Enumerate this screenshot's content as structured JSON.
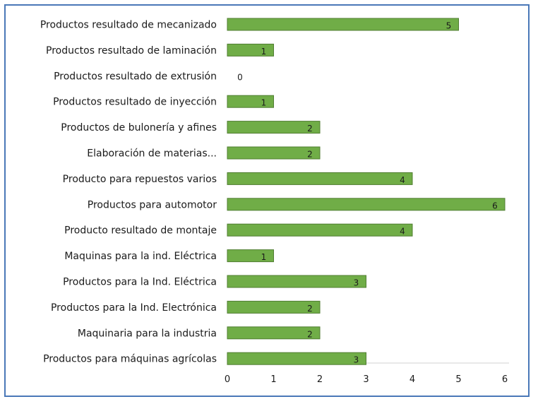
{
  "chart_data": {
    "type": "bar",
    "orientation": "horizontal",
    "title": "",
    "xlabel": "",
    "ylabel": "",
    "xlim": [
      0,
      6
    ],
    "x_ticks": [
      "0",
      "1",
      "2",
      "3",
      "4",
      "5",
      "6"
    ],
    "grid": false,
    "legend": "none",
    "bar_color": "#70ad47",
    "bar_edge_color": "#507e32",
    "categories": [
      "Productos resultado de mecanizado",
      "Productos resultado de laminación",
      "Productos resultado de extrusión",
      "Productos resultado de inyección",
      "Productos de bulonería y afines",
      "Elaboración de materias...",
      "Producto para repuestos varios",
      "Productos para automotor",
      "Producto resultado de montaje",
      "Maquinas para la ind. Eléctrica",
      "Productos para la Ind. Eléctrica",
      "Productos para la Ind. Electrónica",
      "Maquinaria para la industria",
      "Productos para máquinas agrícolas"
    ],
    "values": [
      5,
      1,
      0,
      1,
      2,
      2,
      4,
      6,
      4,
      1,
      3,
      2,
      2,
      3
    ],
    "data_labels": [
      "5",
      "1",
      "0",
      "1",
      "2",
      "2",
      "4",
      "6",
      "4",
      "1",
      "3",
      "2",
      "2",
      "3"
    ]
  }
}
